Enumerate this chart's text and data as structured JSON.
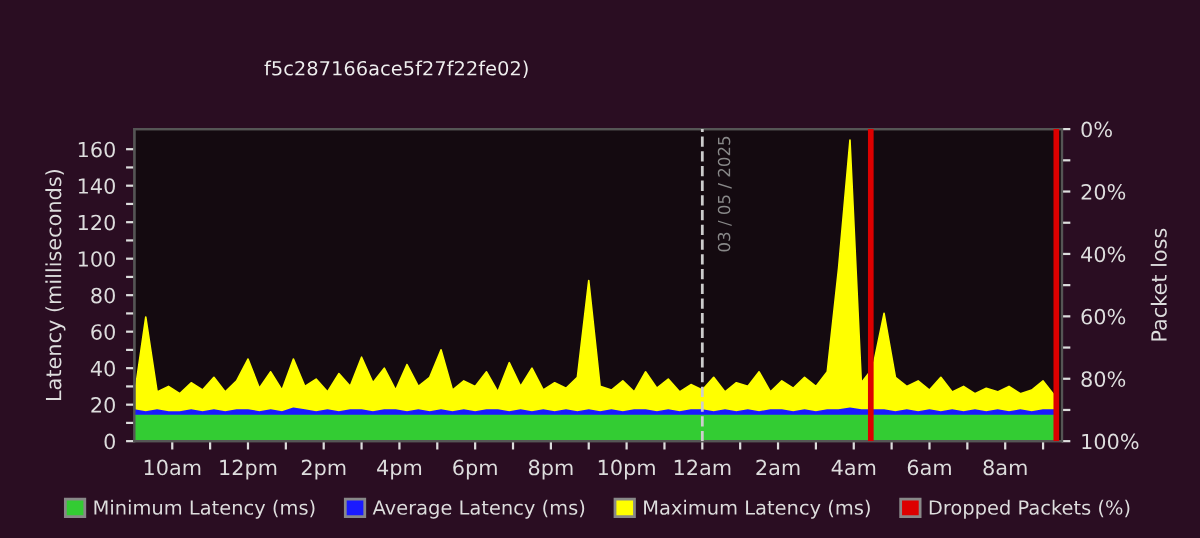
{
  "chart_data": {
    "type": "area",
    "subtitle": "f5c287166ace5f27f22fe02)",
    "ylabel": "Latency (milliseconds)",
    "y2label": "Packet loss",
    "x": [
      "2025-05-02T09:00",
      "2025-05-02T09:18",
      "2025-05-02T09:36",
      "2025-05-02T09:54",
      "2025-05-02T10:12",
      "2025-05-02T10:30",
      "2025-05-02T10:48",
      "2025-05-02T11:06",
      "2025-05-02T11:24",
      "2025-05-02T11:42",
      "2025-05-02T12:00",
      "2025-05-02T12:18",
      "2025-05-02T12:36",
      "2025-05-02T12:54",
      "2025-05-02T13:12",
      "2025-05-02T13:30",
      "2025-05-02T13:48",
      "2025-05-02T14:06",
      "2025-05-02T14:24",
      "2025-05-02T14:42",
      "2025-05-02T15:00",
      "2025-05-02T15:18",
      "2025-05-02T15:36",
      "2025-05-02T15:54",
      "2025-05-02T16:12",
      "2025-05-02T16:30",
      "2025-05-02T16:48",
      "2025-05-02T17:06",
      "2025-05-02T17:24",
      "2025-05-02T17:42",
      "2025-05-02T18:00",
      "2025-05-02T18:18",
      "2025-05-02T18:36",
      "2025-05-02T18:54",
      "2025-05-02T19:12",
      "2025-05-02T19:30",
      "2025-05-02T19:48",
      "2025-05-02T20:06",
      "2025-05-02T20:24",
      "2025-05-02T20:42",
      "2025-05-02T21:00",
      "2025-05-02T21:18",
      "2025-05-02T21:36",
      "2025-05-02T21:54",
      "2025-05-02T22:12",
      "2025-05-02T22:30",
      "2025-05-02T22:48",
      "2025-05-02T23:06",
      "2025-05-02T23:24",
      "2025-05-02T23:42",
      "2025-05-03T00:00",
      "2025-05-03T00:18",
      "2025-05-03T00:36",
      "2025-05-03T00:54",
      "2025-05-03T01:12",
      "2025-05-03T01:30",
      "2025-05-03T01:48",
      "2025-05-03T02:06",
      "2025-05-03T02:24",
      "2025-05-03T02:42",
      "2025-05-03T03:00",
      "2025-05-03T03:18",
      "2025-05-03T03:36",
      "2025-05-03T03:54",
      "2025-05-03T04:12",
      "2025-05-03T04:30",
      "2025-05-03T04:48",
      "2025-05-03T05:06",
      "2025-05-03T05:24",
      "2025-05-03T05:42",
      "2025-05-03T06:00",
      "2025-05-03T06:18",
      "2025-05-03T06:36",
      "2025-05-03T06:54",
      "2025-05-03T07:12",
      "2025-05-03T07:30",
      "2025-05-03T07:48",
      "2025-05-03T08:06",
      "2025-05-03T08:24",
      "2025-05-03T08:42",
      "2025-05-03T09:00",
      "2025-05-03T09:18"
    ],
    "series": [
      {
        "name": "Maximum Latency (ms)",
        "color": "#ffff00",
        "values": [
          25,
          68,
          27,
          30,
          26,
          32,
          28,
          35,
          27,
          33,
          45,
          29,
          38,
          28,
          45,
          30,
          34,
          27,
          37,
          30,
          46,
          32,
          40,
          28,
          42,
          30,
          35,
          50,
          28,
          33,
          30,
          38,
          27,
          43,
          30,
          40,
          28,
          32,
          29,
          35,
          88,
          30,
          28,
          33,
          27,
          38,
          29,
          34,
          27,
          31,
          28,
          35,
          27,
          32,
          30,
          38,
          27,
          33,
          29,
          35,
          30,
          38,
          95,
          165,
          32,
          40,
          70,
          35,
          30,
          33,
          28,
          35,
          27,
          30,
          26,
          29,
          27,
          30,
          26,
          28,
          33,
          25
        ]
      },
      {
        "name": "Average Latency (ms)",
        "color": "#1a1aff",
        "values": [
          17,
          16,
          17,
          16,
          16,
          17,
          16,
          17,
          16,
          17,
          17,
          16,
          17,
          16,
          18,
          17,
          16,
          17,
          16,
          17,
          17,
          16,
          17,
          17,
          16,
          17,
          16,
          17,
          16,
          17,
          16,
          17,
          17,
          16,
          17,
          16,
          17,
          16,
          17,
          16,
          17,
          16,
          17,
          16,
          17,
          17,
          16,
          17,
          16,
          17,
          17,
          16,
          17,
          16,
          17,
          16,
          17,
          17,
          16,
          17,
          16,
          17,
          17,
          18,
          17,
          17,
          17,
          16,
          17,
          16,
          17,
          16,
          17,
          16,
          17,
          16,
          17,
          16,
          17,
          16,
          17,
          17
        ]
      },
      {
        "name": "Minimum Latency (ms)",
        "color": "#33cc33",
        "values": [
          14,
          14,
          14,
          14,
          14,
          14,
          14,
          14,
          14,
          14,
          14,
          14,
          14,
          14,
          14,
          14,
          14,
          14,
          14,
          14,
          14,
          14,
          14,
          14,
          14,
          14,
          14,
          14,
          14,
          14,
          14,
          14,
          14,
          14,
          14,
          14,
          14,
          14,
          14,
          14,
          14,
          14,
          14,
          14,
          14,
          14,
          14,
          14,
          14,
          14,
          14,
          14,
          14,
          14,
          14,
          14,
          14,
          14,
          14,
          14,
          14,
          14,
          14,
          14,
          14,
          14,
          14,
          14,
          14,
          14,
          14,
          14,
          14,
          14,
          14,
          14,
          14,
          14,
          14,
          14,
          14,
          14
        ]
      },
      {
        "name": "Dropped Packets (%)",
        "type": "bar",
        "axis": "y2",
        "color": "#dd0000",
        "x": [
          "2025-05-03T04:27",
          "2025-05-03T09:21"
        ],
        "values": [
          100,
          100
        ]
      }
    ],
    "xlim": [
      "2025-05-02T09:00",
      "2025-05-03T09:30"
    ],
    "xticks": [
      {
        "value": "2025-05-02T10:00",
        "label": "10am"
      },
      {
        "value": "2025-05-02T11:00",
        "label": null
      },
      {
        "value": "2025-05-02T12:00",
        "label": "12pm"
      },
      {
        "value": "2025-05-02T13:00",
        "label": null
      },
      {
        "value": "2025-05-02T14:00",
        "label": "2pm"
      },
      {
        "value": "2025-05-02T15:00",
        "label": null
      },
      {
        "value": "2025-05-02T16:00",
        "label": "4pm"
      },
      {
        "value": "2025-05-02T17:00",
        "label": null
      },
      {
        "value": "2025-05-02T18:00",
        "label": "6pm"
      },
      {
        "value": "2025-05-02T19:00",
        "label": null
      },
      {
        "value": "2025-05-02T20:00",
        "label": "8pm"
      },
      {
        "value": "2025-05-02T21:00",
        "label": null
      },
      {
        "value": "2025-05-02T22:00",
        "label": "10pm"
      },
      {
        "value": "2025-05-02T23:00",
        "label": null
      },
      {
        "value": "2025-05-03T00:00",
        "label": "12am"
      },
      {
        "value": "2025-05-03T01:00",
        "label": null
      },
      {
        "value": "2025-05-03T02:00",
        "label": "2am"
      },
      {
        "value": "2025-05-03T03:00",
        "label": null
      },
      {
        "value": "2025-05-03T04:00",
        "label": "4am"
      },
      {
        "value": "2025-05-03T05:00",
        "label": null
      },
      {
        "value": "2025-05-03T06:00",
        "label": "6am"
      },
      {
        "value": "2025-05-03T07:00",
        "label": null
      },
      {
        "value": "2025-05-03T08:00",
        "label": "8am"
      },
      {
        "value": "2025-05-03T09:00",
        "label": null
      }
    ],
    "ylim": [
      0,
      171
    ],
    "yticks": [
      0,
      {
        "value": 10,
        "label": null
      },
      20,
      {
        "value": 30,
        "label": null
      },
      40,
      {
        "value": 50,
        "label": null
      },
      60,
      {
        "value": 70,
        "label": null
      },
      80,
      {
        "value": 90,
        "label": null
      },
      100,
      {
        "value": 110,
        "label": null
      },
      120,
      {
        "value": 130,
        "label": null
      },
      140,
      {
        "value": 150,
        "label": null
      },
      160
    ],
    "y2lim": [
      100,
      0
    ],
    "y2ticks": [
      {
        "value": 0,
        "label": "0%"
      },
      {
        "value": 10,
        "label": null
      },
      {
        "value": 20,
        "label": "20%"
      },
      {
        "value": 30,
        "label": null
      },
      {
        "value": 40,
        "label": "40%"
      },
      {
        "value": 50,
        "label": null
      },
      {
        "value": 60,
        "label": "60%"
      },
      {
        "value": 70,
        "label": null
      },
      {
        "value": 80,
        "label": "80%"
      },
      {
        "value": 90,
        "label": null
      },
      {
        "value": 100,
        "label": "100%"
      }
    ],
    "ref_lines": [
      {
        "axis": "x",
        "value": "2025-05-03T00:00",
        "label": "03 / 05 / 2025",
        "color": "#cccccc",
        "line_style": "dashed"
      }
    ],
    "legend": "bottom",
    "grid": false
  }
}
